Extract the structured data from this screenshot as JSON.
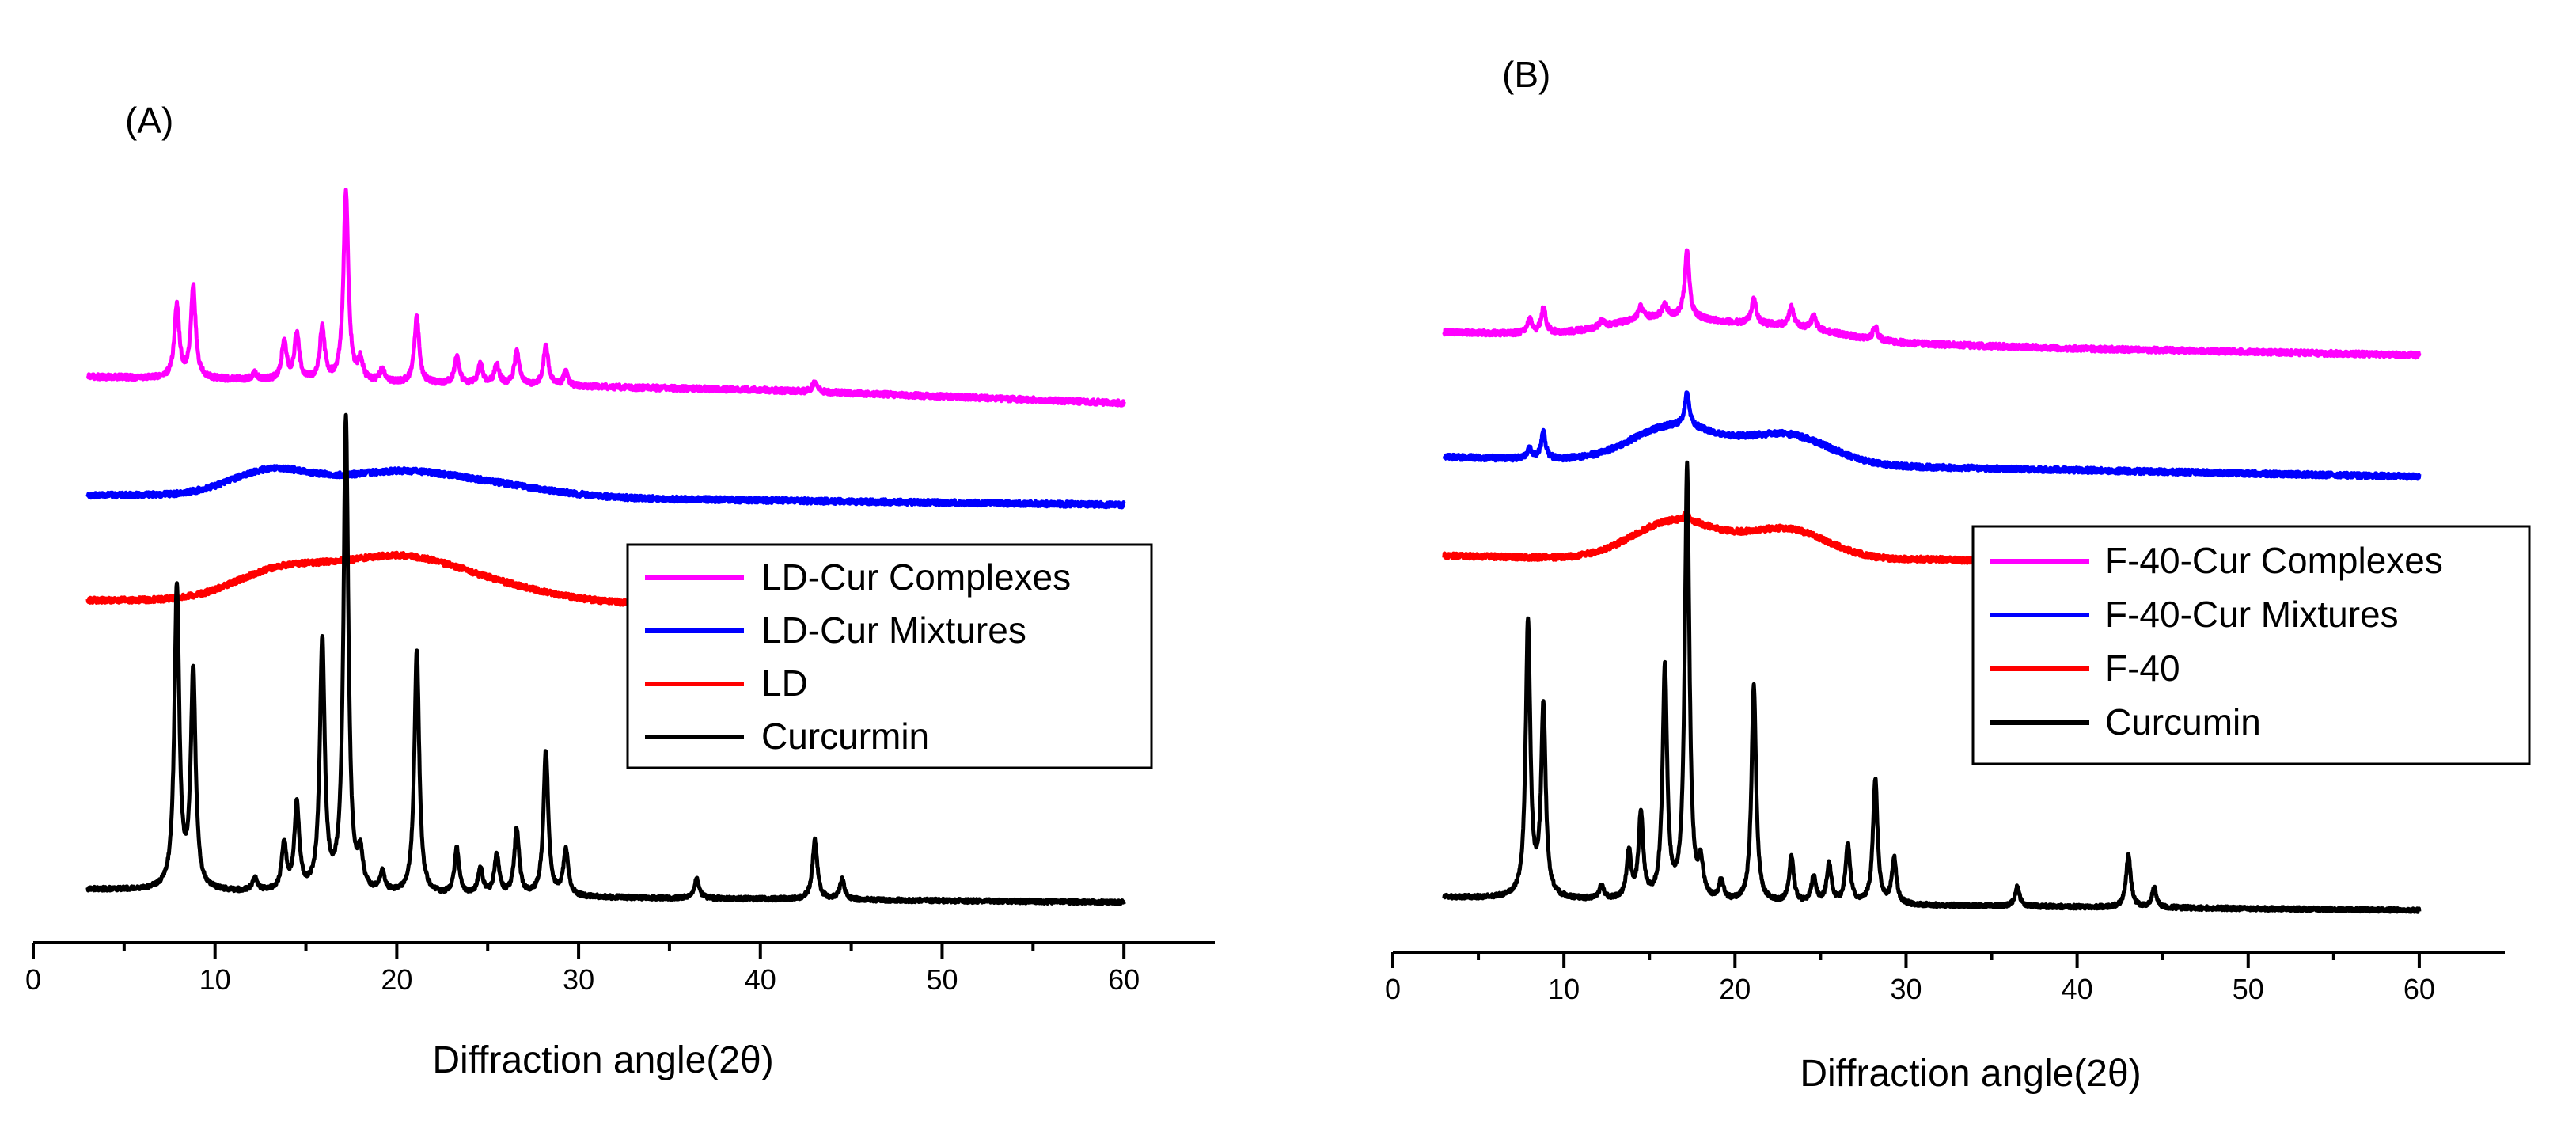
{
  "chart_data": [
    {
      "type": "line",
      "panel_label": "(A)",
      "xlabel": "Diffraction angle(2θ)",
      "ylabel": "",
      "xlim": [
        0,
        65
      ],
      "xticks": [
        0,
        10,
        20,
        30,
        40,
        50,
        60
      ],
      "tick_labels": [
        "0",
        "10",
        "20",
        "30",
        "40",
        "50",
        "60"
      ],
      "legend_position": "center-right",
      "series": [
        {
          "name": "LD-Cur Complexes",
          "color": "#ff00ff",
          "offset": 0.78,
          "baseline": [
            [
              3,
              0.02
            ],
            [
              20,
              0.01
            ],
            [
              40,
              0.0
            ],
            [
              60,
              -0.02
            ]
          ],
          "hump_list": [],
          "peak_list": [
            [
              7.9,
              0.11
            ],
            [
              8.8,
              0.14
            ],
            [
              12.2,
              0.01
            ],
            [
              13.8,
              0.06
            ],
            [
              14.5,
              0.07
            ],
            [
              15.9,
              0.08
            ],
            [
              17.2,
              0.29
            ],
            [
              18.0,
              0.03
            ],
            [
              19.2,
              0.02
            ],
            [
              21.1,
              0.1
            ],
            [
              23.3,
              0.04
            ],
            [
              24.6,
              0.03
            ],
            [
              25.5,
              0.03
            ],
            [
              26.6,
              0.05
            ],
            [
              28.2,
              0.06
            ],
            [
              29.3,
              0.02
            ],
            [
              43.0,
              0.015
            ]
          ],
          "noise": 0.004
        },
        {
          "name": "LD-Cur Mixtures",
          "color": "#0000ff",
          "offset": 0.62,
          "baseline": [
            [
              3,
              0.0
            ],
            [
              20,
              0.0
            ],
            [
              40,
              -0.008
            ],
            [
              60,
              -0.015
            ]
          ],
          "hump_list": [
            [
              13,
              0.035,
              2.2
            ],
            [
              20,
              0.035,
              3.5
            ],
            [
              26,
              0.012,
              3
            ]
          ],
          "peak_list": [],
          "noise": 0.004
        },
        {
          "name": "LD",
          "color": "#ff0000",
          "offset": 0.46,
          "baseline": [
            [
              3,
              0.0
            ],
            [
              20,
              0.0
            ],
            [
              40,
              -0.008
            ],
            [
              60,
              -0.02
            ]
          ],
          "hump_list": [
            [
              13.5,
              0.04,
              2.5
            ],
            [
              20,
              0.065,
              3.5
            ],
            [
              26,
              0.015,
              3
            ]
          ],
          "peak_list": [],
          "noise": 0.004
        },
        {
          "name": "Curcurmin",
          "color": "#000000",
          "offset": 0.0,
          "baseline": [
            [
              3,
              0.02
            ],
            [
              20,
              0.01
            ],
            [
              40,
              0.005
            ],
            [
              60,
              0.0
            ]
          ],
          "hump_list": [],
          "peak_list": [
            [
              7.9,
              0.46
            ],
            [
              8.8,
              0.33
            ],
            [
              12.2,
              0.02
            ],
            [
              13.8,
              0.07
            ],
            [
              14.5,
              0.13
            ],
            [
              15.9,
              0.38
            ],
            [
              17.2,
              0.72
            ],
            [
              18.0,
              0.05
            ],
            [
              19.2,
              0.03
            ],
            [
              21.1,
              0.37
            ],
            [
              23.3,
              0.07
            ],
            [
              24.6,
              0.04
            ],
            [
              25.5,
              0.06
            ],
            [
              26.6,
              0.1
            ],
            [
              28.2,
              0.22
            ],
            [
              29.3,
              0.07
            ],
            [
              36.5,
              0.03
            ],
            [
              43.0,
              0.09
            ],
            [
              44.5,
              0.03
            ]
          ],
          "noise": 0.003
        }
      ]
    },
    {
      "type": "line",
      "panel_label": "(B)",
      "xlabel": "Diffraction angle(2θ)",
      "ylabel": "",
      "xlim": [
        0,
        65
      ],
      "xticks": [
        0,
        10,
        20,
        30,
        40,
        50,
        60
      ],
      "tick_labels": [
        "0",
        "10",
        "20",
        "30",
        "40",
        "50",
        "60"
      ],
      "legend_position": "center-right",
      "series": [
        {
          "name": "F-40-Cur Complexes",
          "color": "#ff00ff",
          "offset": 0.86,
          "baseline": [
            [
              3,
              0.02
            ],
            [
              20,
              0.01
            ],
            [
              40,
              -0.005
            ],
            [
              60,
              -0.015
            ]
          ],
          "hump_list": [
            [
              16,
              0.03,
              3
            ],
            [
              23,
              0.02,
              3
            ]
          ],
          "peak_list": [
            [
              8.0,
              0.02
            ],
            [
              8.8,
              0.04
            ],
            [
              12.2,
              0.01
            ],
            [
              14.5,
              0.02
            ],
            [
              15.9,
              0.02
            ],
            [
              17.2,
              0.1
            ],
            [
              21.1,
              0.04
            ],
            [
              23.3,
              0.03
            ],
            [
              24.6,
              0.02
            ],
            [
              28.2,
              0.02
            ]
          ],
          "noise": 0.004
        },
        {
          "name": "F-40-Cur Mixtures",
          "color": "#0000ff",
          "offset": 0.68,
          "baseline": [
            [
              3,
              0.01
            ],
            [
              20,
              0.0
            ],
            [
              40,
              -0.01
            ],
            [
              60,
              -0.02
            ]
          ],
          "hump_list": [
            [
              16.5,
              0.055,
              2.5
            ],
            [
              23,
              0.045,
              2.5
            ]
          ],
          "peak_list": [
            [
              8.0,
              0.015
            ],
            [
              8.8,
              0.04
            ],
            [
              17.2,
              0.05
            ]
          ],
          "noise": 0.004
        },
        {
          "name": "F-40",
          "color": "#ff0000",
          "offset": 0.53,
          "baseline": [
            [
              3,
              0.01
            ],
            [
              20,
              0.0
            ],
            [
              40,
              -0.01
            ],
            [
              60,
              -0.02
            ]
          ],
          "hump_list": [
            [
              16.5,
              0.06,
              2.5
            ],
            [
              23,
              0.05,
              2.5
            ],
            [
              32,
              0.01,
              4
            ]
          ],
          "peak_list": [
            [
              17.2,
              0.015
            ]
          ],
          "noise": 0.004
        },
        {
          "name": "Curcumin",
          "color": "#000000",
          "offset": 0.0,
          "baseline": [
            [
              3,
              0.02
            ],
            [
              20,
              0.01
            ],
            [
              40,
              0.005
            ],
            [
              60,
              0.0
            ]
          ],
          "hump_list": [],
          "peak_list": [
            [
              7.9,
              0.42
            ],
            [
              8.8,
              0.29
            ],
            [
              12.2,
              0.02
            ],
            [
              13.8,
              0.07
            ],
            [
              14.5,
              0.13
            ],
            [
              15.9,
              0.35
            ],
            [
              17.2,
              0.66
            ],
            [
              18.0,
              0.05
            ],
            [
              19.2,
              0.03
            ],
            [
              21.1,
              0.33
            ],
            [
              23.3,
              0.07
            ],
            [
              24.6,
              0.04
            ],
            [
              25.5,
              0.06
            ],
            [
              26.6,
              0.09
            ],
            [
              28.2,
              0.19
            ],
            [
              29.3,
              0.07
            ],
            [
              36.5,
              0.03
            ],
            [
              43.0,
              0.08
            ],
            [
              44.5,
              0.03
            ]
          ],
          "noise": 0.003
        }
      ]
    }
  ]
}
